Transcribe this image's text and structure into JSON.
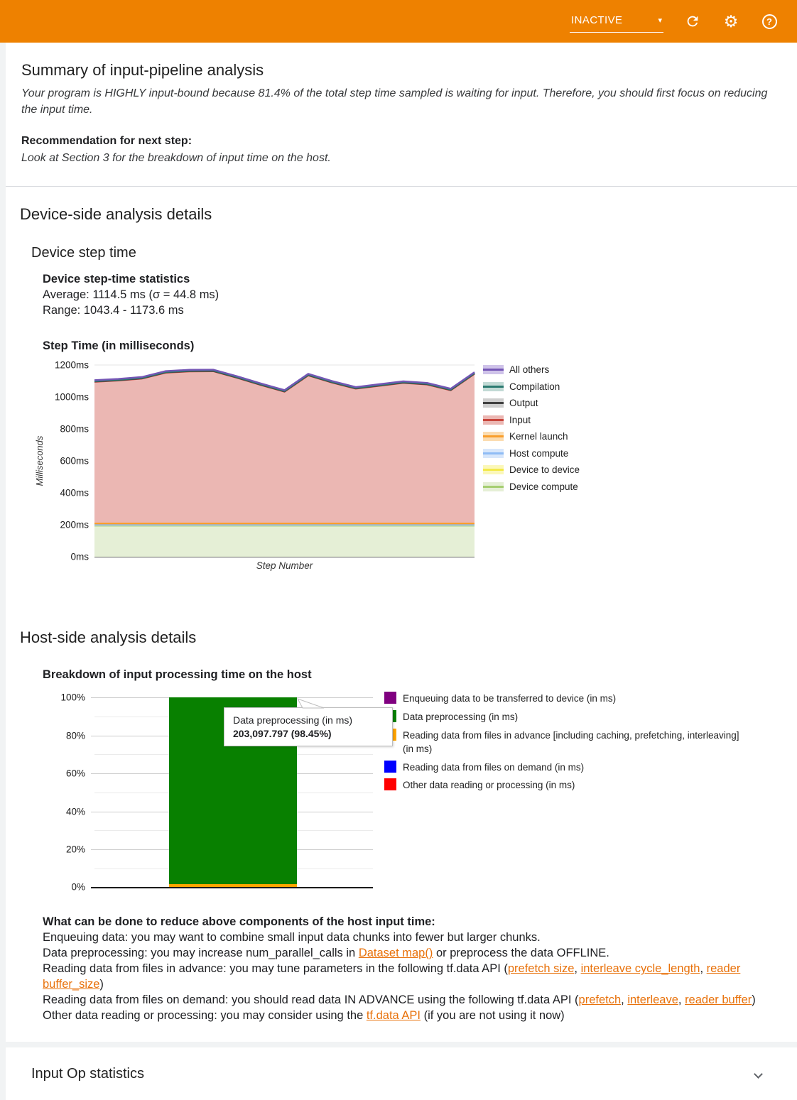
{
  "header": {
    "run_status": "INACTIVE",
    "accent_color": "#EE8100",
    "icons": [
      "dropdown-caret",
      "refresh",
      "settings",
      "help"
    ]
  },
  "summary": {
    "title": "Summary of input-pipeline analysis",
    "body": "Your program is HIGHLY input-bound because 81.4% of the total step time sampled is waiting for input. Therefore, you should first focus on reducing the input time.",
    "recommendation_label": "Recommendation for next step:",
    "recommendation_text": "Look at Section 3 for the breakdown of input time on the host."
  },
  "device_section": {
    "title": "Device-side analysis details",
    "subtitle": "Device step time",
    "stats_title": "Device step-time statistics",
    "stats_average": "Average: 1114.5 ms (σ = 44.8 ms)",
    "stats_range": "Range: 1043.4 - 1173.6 ms",
    "chart_title": "Step Time (in milliseconds)"
  },
  "host_section": {
    "title": "Host-side analysis details",
    "chart_title": "Breakdown of input processing time on the host",
    "advice_title": "What can be done to reduce above components of the host input time:",
    "link_color": "#E8710A",
    "advice_lines": [
      [
        {
          "t": "Enqueuing data: you may want to combine small input data chunks into fewer but larger chunks."
        }
      ],
      [
        {
          "t": "Data preprocessing: you may increase num_parallel_calls in "
        },
        {
          "t": "Dataset map()",
          "link": true
        },
        {
          "t": " or preprocess the data OFFLINE."
        }
      ],
      [
        {
          "t": "Reading data from files in advance: you may tune parameters in the following tf.data API ("
        },
        {
          "t": "prefetch size",
          "link": true
        },
        {
          "t": ", "
        },
        {
          "t": "interleave cycle_length",
          "link": true
        },
        {
          "t": ", "
        },
        {
          "t": "reader buffer_size",
          "link": true
        },
        {
          "t": ")"
        }
      ],
      [
        {
          "t": "Reading data from files on demand: you should read data IN ADVANCE using the following tf.data API ("
        },
        {
          "t": "prefetch",
          "link": true
        },
        {
          "t": ", "
        },
        {
          "t": "interleave",
          "link": true
        },
        {
          "t": ", "
        },
        {
          "t": "reader buffer",
          "link": true
        },
        {
          "t": ")"
        }
      ],
      [
        {
          "t": "Other data reading or processing: you may consider using the "
        },
        {
          "t": "tf.data API",
          "link": true
        },
        {
          "t": " (if you are not using it now)"
        }
      ]
    ]
  },
  "input_op_section": {
    "title": "Input Op statistics"
  },
  "chart_data": [
    {
      "id": "device_step_time",
      "type": "area",
      "title": "Step Time (in milliseconds)",
      "xlabel": "Step Number",
      "ylabel": "Milliseconds",
      "ylim": [
        0,
        1200
      ],
      "ytick_labels": [
        "0ms",
        "200ms",
        "400ms",
        "600ms",
        "800ms",
        "1000ms",
        "1200ms"
      ],
      "grid": true,
      "legend_position": "right",
      "stack_order_bottom_to_top": [
        "Device compute",
        "Device to device",
        "Host compute",
        "Kernel launch",
        "Input",
        "Output",
        "Compilation",
        "All others"
      ],
      "total_step_time_ms": [
        1105,
        1113,
        1125,
        1162,
        1170,
        1171,
        1130,
        1085,
        1043,
        1145,
        1100,
        1062,
        1080,
        1098,
        1088,
        1052,
        1155
      ],
      "series": [
        {
          "name": "All others",
          "line_color": "#7456B5",
          "fill_color": "#CFC3E9",
          "values": [
            5,
            5,
            5,
            5,
            5,
            5,
            5,
            5,
            5,
            5,
            5,
            5,
            5,
            5,
            5,
            5,
            5
          ]
        },
        {
          "name": "Compilation",
          "line_color": "#2B7A70",
          "fill_color": "#C2DAD5",
          "values": [
            3,
            3,
            3,
            3,
            3,
            3,
            3,
            3,
            3,
            3,
            3,
            3,
            3,
            3,
            3,
            3,
            3
          ]
        },
        {
          "name": "Output",
          "line_color": "#404040",
          "fill_color": "#CFCFCF",
          "values": [
            2,
            2,
            2,
            2,
            2,
            2,
            2,
            2,
            2,
            2,
            2,
            2,
            2,
            2,
            2,
            2,
            2
          ]
        },
        {
          "name": "Input",
          "line_color": "#C8453C",
          "fill_color": "#EBB7B3",
          "values": [
            887,
            895,
            907,
            944,
            952,
            953,
            912,
            867,
            825,
            927,
            882,
            844,
            862,
            880,
            870,
            834,
            937
          ]
        },
        {
          "name": "Kernel launch",
          "line_color": "#F99E2C",
          "fill_color": "#FBDCB1",
          "values": [
            9,
            9,
            9,
            9,
            9,
            9,
            9,
            9,
            9,
            9,
            9,
            9,
            9,
            9,
            9,
            9,
            9
          ]
        },
        {
          "name": "Host compute",
          "line_color": "#8FBCF5",
          "fill_color": "#D8E7FB",
          "values": [
            2,
            2,
            2,
            2,
            2,
            2,
            2,
            2,
            2,
            2,
            2,
            2,
            2,
            2,
            2,
            2,
            2
          ]
        },
        {
          "name": "Device to device",
          "line_color": "#F3EA49",
          "fill_color": "#FBF7B9",
          "values": [
            2,
            2,
            2,
            2,
            2,
            2,
            2,
            2,
            2,
            2,
            2,
            2,
            2,
            2,
            2,
            2,
            2
          ]
        },
        {
          "name": "Device compute",
          "line_color": "#A5CE71",
          "fill_color": "#E5EFD6",
          "values": [
            195,
            195,
            195,
            195,
            195,
            195,
            195,
            195,
            195,
            195,
            195,
            195,
            195,
            195,
            195,
            195,
            195
          ]
        }
      ]
    },
    {
      "id": "host_input_breakdown",
      "type": "stacked_bar_percent",
      "title": "Breakdown of input processing time on the host",
      "ylim": [
        0,
        100
      ],
      "ytick_labels": [
        "0%",
        "20%",
        "40%",
        "60%",
        "80%",
        "100%"
      ],
      "grid": true,
      "legend_position": "right",
      "segments": [
        {
          "label": "Enqueuing data to be transferred to device (in ms)",
          "color": "#800080",
          "percent": 0
        },
        {
          "label": "Data preprocessing (in ms)",
          "color": "#088000",
          "percent": 98.45,
          "value_ms": "203,097.797"
        },
        {
          "label": "Reading data from files in advance [including caching, prefetching, interleaving] (in ms)",
          "color": "#FFA500",
          "percent": 1.55
        },
        {
          "label": "Reading data from files on demand (in ms)",
          "color": "#0000FF",
          "percent": 0
        },
        {
          "label": "Other data reading or processing (in ms)",
          "color": "#FF0000",
          "percent": 0
        }
      ],
      "tooltip": {
        "title": "Data preprocessing (in ms)",
        "value": "203,097.797 (98.45%)"
      }
    }
  ]
}
